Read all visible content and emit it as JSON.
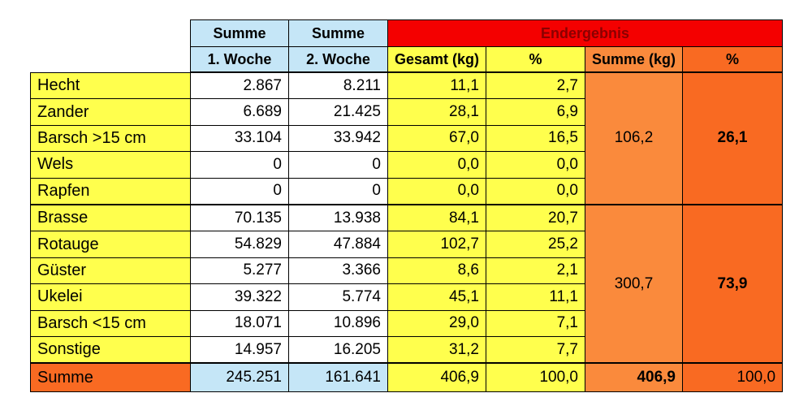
{
  "headers": {
    "summe": "Summe",
    "woche1": "1. Woche",
    "woche2": "2. Woche",
    "endergebnis": "Endergebnis",
    "gesamt_kg": "Gesamt (kg)",
    "percent": "%",
    "summe_kg": "Summe (kg)",
    "percent2": "%"
  },
  "rows": [
    {
      "name": "Hecht",
      "w1": "2.867",
      "w2": "8.211",
      "gesamt": "11,1",
      "pct": "2,7"
    },
    {
      "name": "Zander",
      "w1": "6.689",
      "w2": "21.425",
      "gesamt": "28,1",
      "pct": "6,9"
    },
    {
      "name": "Barsch >15 cm",
      "w1": "33.104",
      "w2": "33.942",
      "gesamt": "67,0",
      "pct": "16,5"
    },
    {
      "name": "Wels",
      "w1": "0",
      "w2": "0",
      "gesamt": "0,0",
      "pct": "0,0"
    },
    {
      "name": "Rapfen",
      "w1": "0",
      "w2": "0",
      "gesamt": "0,0",
      "pct": "0,0"
    },
    {
      "name": "Brasse",
      "w1": "70.135",
      "w2": "13.938",
      "gesamt": "84,1",
      "pct": "20,7"
    },
    {
      "name": "Rotauge",
      "w1": "54.829",
      "w2": "47.884",
      "gesamt": "102,7",
      "pct": "25,2"
    },
    {
      "name": "Güster",
      "w1": "5.277",
      "w2": "3.366",
      "gesamt": "8,6",
      "pct": "2,1"
    },
    {
      "name": "Ukelei",
      "w1": "39.322",
      "w2": "5.774",
      "gesamt": "45,1",
      "pct": "11,1"
    },
    {
      "name": "Barsch <15 cm",
      "w1": "18.071",
      "w2": "10.896",
      "gesamt": "29,0",
      "pct": "7,1"
    },
    {
      "name": "Sonstige",
      "w1": "14.957",
      "w2": "16.205",
      "gesamt": "31,2",
      "pct": "7,7"
    }
  ],
  "groups": [
    {
      "summe_kg": "106,2",
      "pct": "26,1"
    },
    {
      "summe_kg": "300,7",
      "pct": "73,9"
    }
  ],
  "total": {
    "name": "Summe",
    "w1": "245.251",
    "w2": "161.641",
    "gesamt": "406,9",
    "pct": "100,0",
    "summe_kg": "406,9",
    "pct2": "100,0"
  },
  "colors": {
    "blue": "#c5e6f7",
    "yellow": "#ffff4d",
    "red": "#f40000",
    "orange_light": "#fa8a3c",
    "orange_dark": "#f96a22"
  }
}
